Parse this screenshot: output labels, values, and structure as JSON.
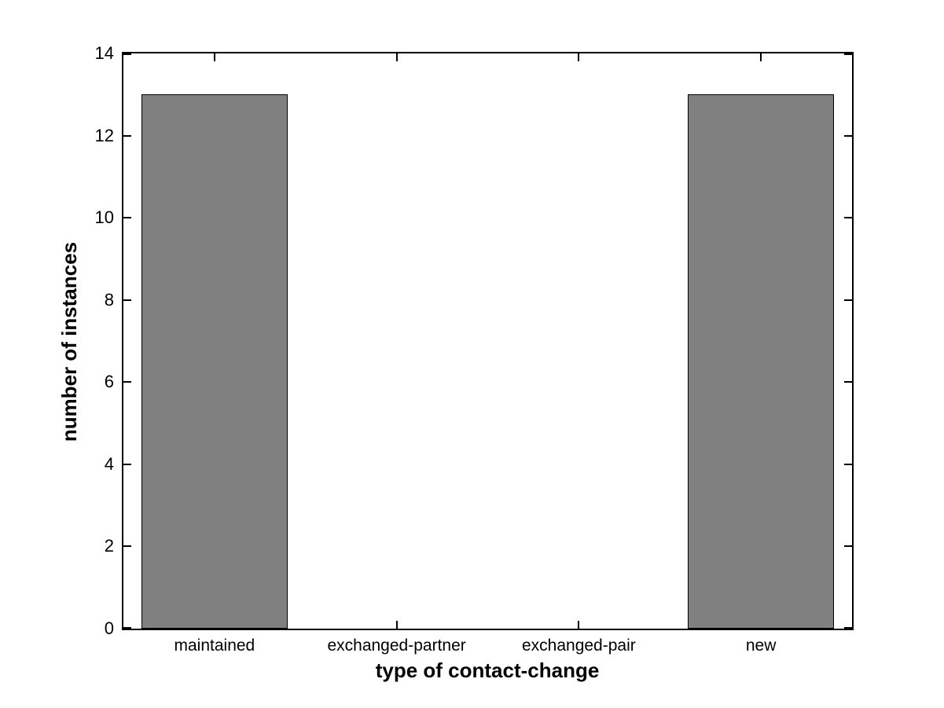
{
  "chart_data": {
    "type": "bar",
    "categories": [
      "maintained",
      "exchanged-partner",
      "exchanged-pair",
      "new"
    ],
    "values": [
      13,
      0,
      0,
      13
    ],
    "title": "",
    "xlabel": "type of contact-change",
    "ylabel": "number of instances",
    "ylim": [
      0,
      14
    ],
    "yticks": [
      0,
      2,
      4,
      6,
      8,
      10,
      12,
      14
    ],
    "bar_width_fraction": 0.8,
    "grid": "off",
    "legend": "none",
    "bar_color": "#808080",
    "bar_edge_color": "#000000",
    "axis_color": "#000000",
    "background_color": "#ffffff"
  }
}
